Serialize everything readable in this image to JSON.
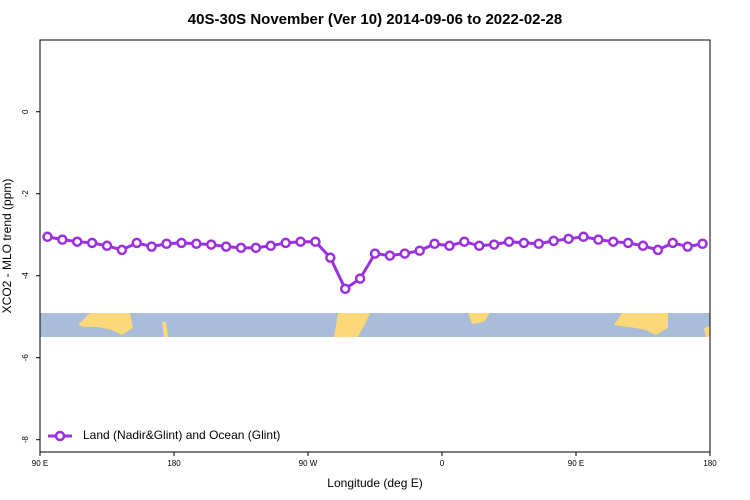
{
  "chart_data": {
    "type": "line",
    "title": "40S-30S November (Ver 10)   2014-09-06 to 2022-02-28",
    "x_label": "Longitude (deg E)",
    "y_label": "XCO2 - MLO trend (ppm)",
    "x": [
      95,
      105,
      115,
      125,
      135,
      145,
      155,
      165,
      175,
      185,
      195,
      205,
      215,
      225,
      235,
      245,
      255,
      265,
      275,
      285,
      295,
      305,
      315,
      325,
      335,
      345,
      355,
      365,
      375,
      385,
      395,
      405,
      415,
      425,
      435,
      445,
      455,
      465,
      475,
      485,
      495,
      505,
      515,
      525,
      535
    ],
    "series": [
      {
        "name": "Land (Nadir&Glint) and Ocean (Glint)",
        "color": "#9b30e0",
        "values": [
          -3.05,
          -3.12,
          -3.17,
          -3.2,
          -3.27,
          -3.37,
          -3.2,
          -3.29,
          -3.22,
          -3.2,
          -3.22,
          -3.24,
          -3.29,
          -3.32,
          -3.32,
          -3.27,
          -3.2,
          -3.17,
          -3.17,
          -3.56,
          -4.32,
          -4.07,
          -3.46,
          -3.51,
          -3.46,
          -3.39,
          -3.22,
          -3.27,
          -3.17,
          -3.27,
          -3.24,
          -3.17,
          -3.2,
          -3.22,
          -3.15,
          -3.1,
          -3.05,
          -3.12,
          -3.17,
          -3.2,
          -3.27,
          -3.37,
          -3.2,
          -3.29,
          -3.22
        ]
      }
    ],
    "xlim": [
      90,
      540
    ],
    "xticks": [
      {
        "value": 90,
        "label": "90 E"
      },
      {
        "value": 180,
        "label": "180"
      },
      {
        "value": 270,
        "label": "90 W"
      },
      {
        "value": 360,
        "label": "0"
      },
      {
        "value": 450,
        "label": "90 E"
      },
      {
        "value": 540,
        "label": "180"
      }
    ],
    "ylim": [
      -8.3,
      1.75
    ],
    "yticks": [
      0,
      -2,
      -4,
      -6,
      -8
    ],
    "legend": "bottom-left"
  }
}
